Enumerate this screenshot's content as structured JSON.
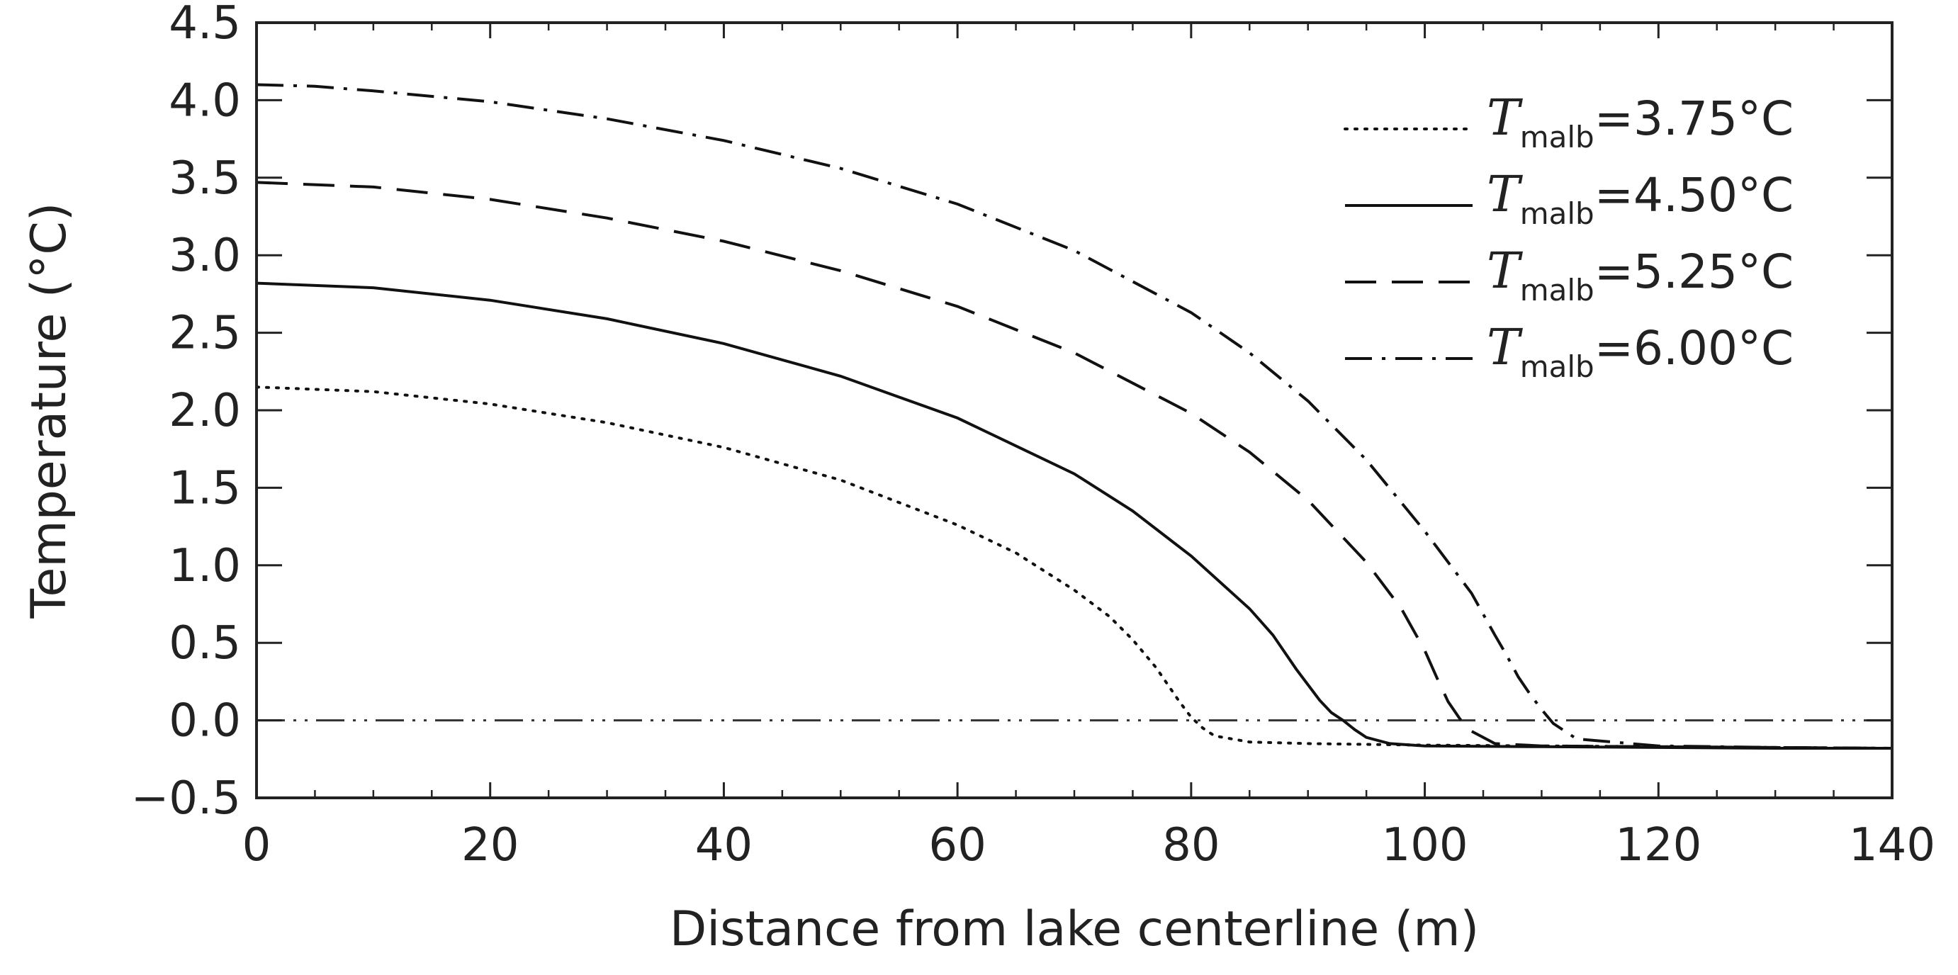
{
  "chart_data": {
    "type": "line",
    "title": "",
    "xlabel": "Distance from lake centerline (m)",
    "ylabel": "Temperature (°C)",
    "xlim": [
      0,
      140
    ],
    "ylim": [
      -0.5,
      4.5
    ],
    "xticks": [
      0,
      20,
      40,
      60,
      80,
      100,
      120,
      140
    ],
    "yticks": [
      -0.5,
      0.0,
      0.5,
      1.0,
      1.5,
      2.0,
      2.5,
      3.0,
      3.5,
      4.0,
      4.5
    ],
    "xtick_labels": [
      "0",
      "20",
      "40",
      "60",
      "80",
      "100",
      "120",
      "140"
    ],
    "ytick_labels": [
      "−0.5",
      "0.0",
      "0.5",
      "1.0",
      "1.5",
      "2.0",
      "2.5",
      "3.0",
      "3.5",
      "4.0",
      "4.5"
    ],
    "grid": false,
    "legend_position": "top-right",
    "reference_line": {
      "y": 0.0,
      "style": "dash-dot-dot"
    },
    "series": [
      {
        "name": "T_malb=3.75°C",
        "legend_symbol": "T",
        "legend_sub": "malb",
        "legend_value": "=3.75°C",
        "style": "dotted",
        "x": [
          0,
          10,
          20,
          30,
          40,
          50,
          60,
          65,
          70,
          73,
          75,
          77,
          79,
          80,
          81,
          82,
          85,
          90,
          95,
          100,
          110,
          120,
          130,
          140
        ],
        "y": [
          2.15,
          2.12,
          2.04,
          1.92,
          1.76,
          1.55,
          1.26,
          1.08,
          0.84,
          0.67,
          0.52,
          0.34,
          0.12,
          0.02,
          -0.05,
          -0.1,
          -0.14,
          -0.15,
          -0.155,
          -0.16,
          -0.165,
          -0.17,
          -0.175,
          -0.18
        ]
      },
      {
        "name": "T_malb=4.50°C",
        "legend_symbol": "T",
        "legend_sub": "malb",
        "legend_value": "=4.50°C",
        "style": "solid",
        "x": [
          0,
          10,
          20,
          30,
          40,
          50,
          60,
          70,
          75,
          80,
          85,
          87,
          89,
          91,
          92,
          93,
          94,
          95,
          97,
          100,
          110,
          120,
          130,
          140
        ],
        "y": [
          2.82,
          2.79,
          2.71,
          2.59,
          2.43,
          2.22,
          1.95,
          1.59,
          1.35,
          1.06,
          0.72,
          0.55,
          0.33,
          0.13,
          0.05,
          0.0,
          -0.06,
          -0.11,
          -0.15,
          -0.165,
          -0.17,
          -0.175,
          -0.18,
          -0.18
        ]
      },
      {
        "name": "T_malb=5.25°C",
        "legend_symbol": "T",
        "legend_sub": "malb",
        "legend_value": "=5.25°C",
        "style": "dashed",
        "x": [
          0,
          10,
          20,
          30,
          40,
          50,
          60,
          70,
          80,
          85,
          90,
          95,
          98,
          100,
          101,
          102,
          103,
          104,
          106,
          110,
          120,
          130,
          140
        ],
        "y": [
          3.47,
          3.44,
          3.36,
          3.24,
          3.09,
          2.9,
          2.67,
          2.37,
          1.98,
          1.73,
          1.42,
          1.02,
          0.72,
          0.45,
          0.28,
          0.12,
          0.01,
          -0.07,
          -0.15,
          -0.165,
          -0.17,
          -0.175,
          -0.18
        ]
      },
      {
        "name": "T_malb=6.00°C",
        "legend_symbol": "T",
        "legend_sub": "malb",
        "legend_value": "=6.00°C",
        "style": "dash-dot",
        "x": [
          0,
          5,
          10,
          20,
          30,
          40,
          50,
          60,
          70,
          80,
          85,
          90,
          95,
          100,
          104,
          106,
          107,
          108,
          109,
          110,
          111,
          113,
          120,
          130,
          140
        ],
        "y": [
          4.1,
          4.09,
          4.06,
          3.99,
          3.88,
          3.74,
          3.56,
          3.33,
          3.03,
          2.63,
          2.37,
          2.06,
          1.68,
          1.22,
          0.82,
          0.55,
          0.42,
          0.28,
          0.17,
          0.07,
          -0.02,
          -0.12,
          -0.165,
          -0.175,
          -0.18
        ]
      }
    ]
  }
}
